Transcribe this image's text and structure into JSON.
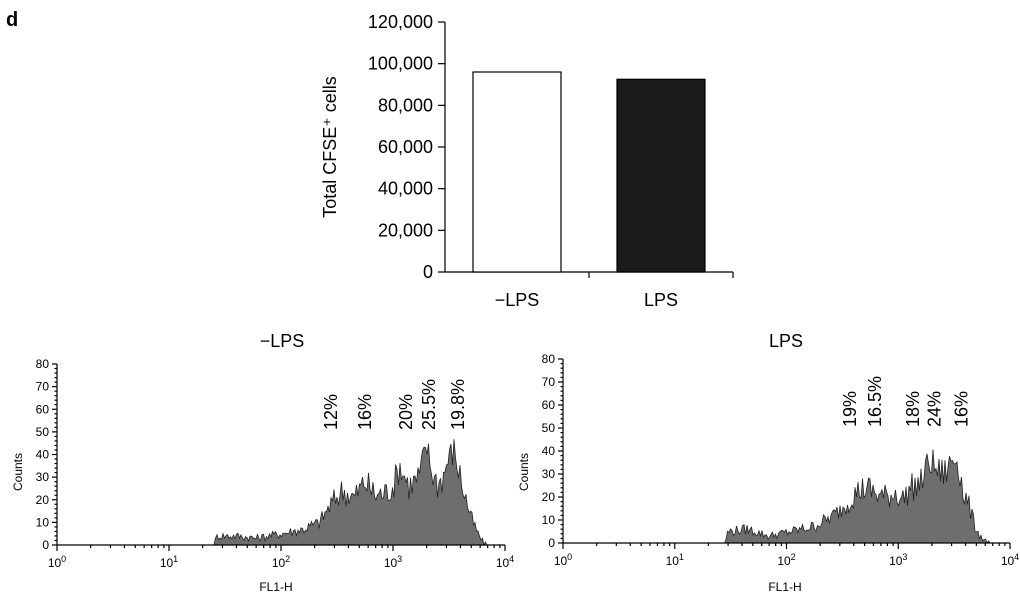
{
  "panel_letter": "d",
  "chart_data": [
    {
      "type": "bar",
      "categories": [
        "−LPS",
        "LPS"
      ],
      "values": [
        96000,
        92500
      ],
      "bar_colors": [
        "#ffffff",
        "#1a1a1a"
      ],
      "ylabel": "Total CFSE⁺ cells",
      "ylim": [
        0,
        120000
      ],
      "yticks": [
        0,
        20000,
        40000,
        60000,
        80000,
        100000,
        120000
      ],
      "ytick_labels": [
        "0",
        "20,000",
        "40,000",
        "60,000",
        "80,000",
        "100,000",
        "120,000"
      ]
    },
    {
      "type": "area",
      "title": "−LPS",
      "xlabel": "FL1-H",
      "ylabel": "Counts",
      "x_scale": "log",
      "xlim": [
        1,
        10000
      ],
      "xtick_exponents": [
        0,
        1,
        2,
        3,
        4
      ],
      "ylim": [
        0,
        80
      ],
      "yticks": [
        0,
        10,
        20,
        30,
        40,
        50,
        60,
        70,
        80
      ],
      "fill_color": "#6e6e6e",
      "annotations": [
        {
          "text": "12%",
          "x": 280
        },
        {
          "text": "16%",
          "x": 560
        },
        {
          "text": "20%",
          "x": 1300
        },
        {
          "text": "25.5%",
          "x": 2100
        },
        {
          "text": "19.8%",
          "x": 3800
        }
      ],
      "profile": {
        "x": [
          25,
          27,
          40,
          60,
          100,
          160,
          220,
          280,
          350,
          450,
          560,
          700,
          850,
          1000,
          1150,
          1400,
          1700,
          2000,
          2200,
          2500,
          2800,
          3100,
          3500,
          4000,
          4500,
          5000,
          5600,
          6200,
          6800
        ],
        "y": [
          0,
          4,
          4,
          3,
          5,
          7,
          10,
          18,
          24,
          21,
          28,
          22,
          23,
          26,
          35,
          26,
          30,
          44,
          33,
          27,
          30,
          38,
          42,
          30,
          20,
          12,
          6,
          2,
          0
        ]
      }
    },
    {
      "type": "area",
      "title": "LPS",
      "xlabel": "FL1-H",
      "ylabel": "Counts",
      "x_scale": "log",
      "xlim": [
        1,
        10000
      ],
      "xtick_exponents": [
        0,
        1,
        2,
        3,
        4
      ],
      "ylim": [
        0,
        80
      ],
      "yticks": [
        0,
        10,
        20,
        30,
        40,
        50,
        60,
        70,
        80
      ],
      "fill_color": "#6e6e6e",
      "annotations": [
        {
          "text": "19%",
          "x": 370
        },
        {
          "text": "16.5%",
          "x": 620
        },
        {
          "text": "18%",
          "x": 1350
        },
        {
          "text": "24%",
          "x": 2100
        },
        {
          "text": "16%",
          "x": 3700
        }
      ],
      "profile": {
        "x": [
          28,
          30,
          45,
          70,
          110,
          170,
          250,
          330,
          420,
          520,
          650,
          800,
          950,
          1100,
          1300,
          1600,
          1900,
          2100,
          2400,
          2700,
          3000,
          3400,
          3800,
          4300,
          4800,
          5400,
          6000,
          6500
        ],
        "y": [
          0,
          5,
          6,
          3,
          5,
          7,
          11,
          16,
          22,
          24,
          21,
          20,
          22,
          19,
          24,
          26,
          36,
          33,
          30,
          31,
          36,
          37,
          22,
          16,
          8,
          3,
          1,
          0
        ]
      }
    }
  ]
}
